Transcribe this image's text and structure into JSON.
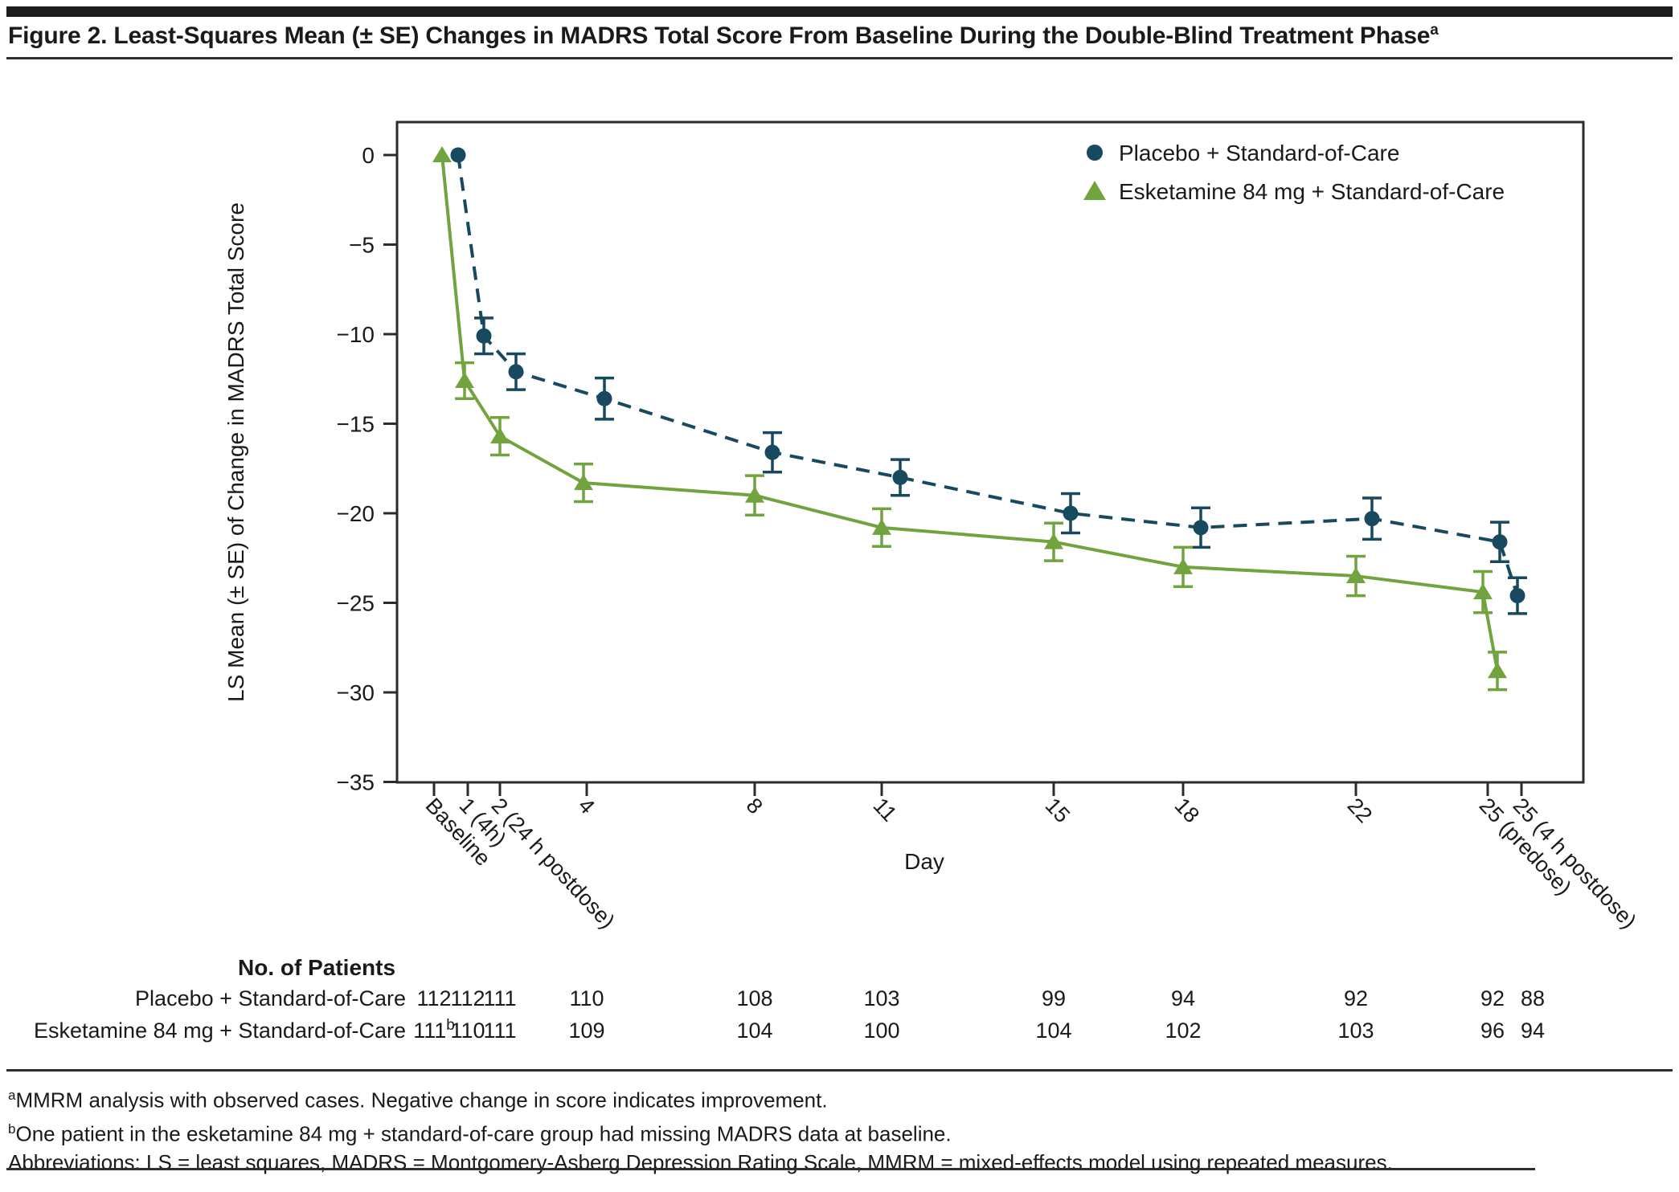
{
  "title": {
    "text": "Figure 2. Least-Squares Mean (± SE) Changes in MADRS Total Score From Baseline During the Double-Blind Treatment Phase",
    "superscript": "a"
  },
  "footnotes": {
    "a_sup": "a",
    "a": "MMRM analysis with observed cases. Negative change in score indicates improvement.",
    "b_sup": "b",
    "b": "One patient in the esketamine 84 mg + standard-of-care group had missing MADRS data at baseline.",
    "abbreviations": "Abbreviations: LS = least squares, MADRS = Montgomery-Asberg Depression Rating Scale, MMRM = mixed-effects model using repeated measures."
  },
  "chart_data": {
    "type": "line",
    "x_axis": {
      "label": "Day",
      "tick_labels": [
        "Baseline",
        "1 (4h)",
        "2 (24 h postdose)",
        "4",
        "8",
        "11",
        "15",
        "18",
        "22",
        "25 (predose)",
        "25 (4 h postdose)"
      ],
      "x_days": [
        0,
        1,
        2,
        4,
        8,
        11,
        15,
        18,
        22,
        25,
        25.2
      ]
    },
    "y_axis": {
      "label": "LS Mean (± SE) of Change in MADRS Total Score",
      "ticks": [
        0,
        -5,
        -10,
        -15,
        -20,
        -25,
        -30,
        -35
      ],
      "range": [
        -35,
        1.8
      ],
      "grid": false
    },
    "legend_position": "top-right-inside",
    "series": [
      {
        "name": "Placebo + Standard-of-Care",
        "color": "#17495f",
        "marker": "circle",
        "line_style": "dashed",
        "values": [
          0,
          -10.1,
          -12.1,
          -13.6,
          -16.6,
          -18.0,
          -20.0,
          -20.8,
          -20.3,
          -21.6,
          -24.6
        ],
        "se": [
          0,
          1.0,
          1.0,
          1.15,
          1.1,
          1.0,
          1.1,
          1.1,
          1.15,
          1.1,
          1.0
        ]
      },
      {
        "name": "Esketamine 84 mg + Standard-of-Care",
        "color": "#71a33e",
        "marker": "triangle",
        "line_style": "solid",
        "values": [
          0,
          -12.6,
          -15.7,
          -18.3,
          -19.0,
          -20.8,
          -21.6,
          -23.0,
          -23.5,
          -24.4,
          -28.8
        ],
        "se": [
          0,
          1.0,
          1.05,
          1.05,
          1.1,
          1.05,
          1.05,
          1.1,
          1.1,
          1.15,
          1.05
        ]
      }
    ],
    "patients_table": {
      "header": "No. of Patients",
      "rows": [
        {
          "label": "Placebo + Standard-of-Care",
          "values": [
            "112",
            "112",
            "111",
            "110",
            "108",
            "103",
            "99",
            "94",
            "92",
            "92",
            "88"
          ],
          "first_value_sup": ""
        },
        {
          "label": "Esketamine 84 mg + Standard-of-Care",
          "values": [
            "111",
            "110",
            "111",
            "109",
            "104",
            "100",
            "104",
            "102",
            "103",
            "96",
            "94"
          ],
          "first_value_sup": "b"
        }
      ]
    }
  }
}
